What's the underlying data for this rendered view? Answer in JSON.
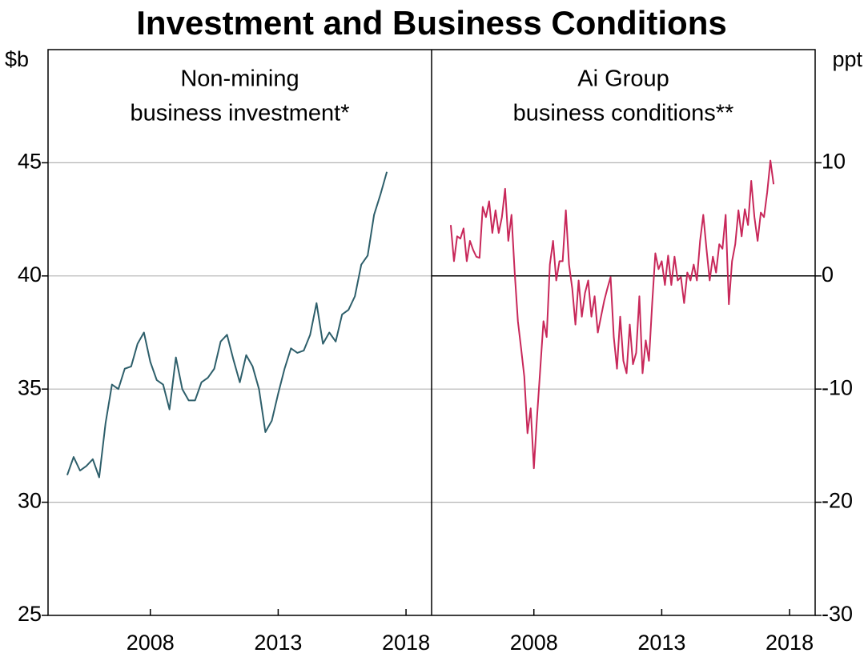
{
  "title": "Investment and Business Conditions",
  "chart_data": [
    {
      "type": "line",
      "title": [
        "Non-mining",
        "business investment*"
      ],
      "y_label": "$b",
      "color": "#2e5f6b",
      "x": [
        2004.75,
        2005,
        2005.25,
        2005.5,
        2005.75,
        2006,
        2006.25,
        2006.5,
        2006.75,
        2007,
        2007.25,
        2007.5,
        2007.75,
        2008,
        2008.25,
        2008.5,
        2008.75,
        2009,
        2009.25,
        2009.5,
        2009.75,
        2010,
        2010.25,
        2010.5,
        2010.75,
        2011,
        2011.25,
        2011.5,
        2011.75,
        2012,
        2012.25,
        2012.5,
        2012.75,
        2013,
        2013.25,
        2013.5,
        2013.75,
        2014,
        2014.25,
        2014.5,
        2014.75,
        2015,
        2015.25,
        2015.5,
        2015.75,
        2016,
        2016.25,
        2016.5,
        2016.75,
        2017,
        2017.25
      ],
      "values": [
        31.2,
        32.0,
        31.4,
        31.6,
        31.9,
        31.1,
        33.5,
        35.2,
        35.0,
        35.9,
        36.0,
        37.0,
        37.5,
        36.2,
        35.4,
        35.2,
        34.1,
        36.4,
        35.0,
        34.5,
        34.5,
        35.3,
        35.5,
        35.9,
        37.1,
        37.4,
        36.3,
        35.3,
        36.5,
        36.0,
        35.0,
        33.1,
        33.6,
        34.8,
        35.9,
        36.8,
        36.6,
        36.7,
        37.4,
        38.8,
        37.0,
        37.5,
        37.1,
        38.3,
        38.5,
        39.1,
        40.5,
        40.9,
        42.7,
        43.6,
        44.6
      ],
      "xlim": [
        2004,
        2019
      ],
      "xticks": [
        2008,
        2013,
        2018
      ],
      "ylim": [
        25,
        50
      ],
      "yticks": [
        25,
        30,
        35,
        40,
        45
      ],
      "grid": true
    },
    {
      "type": "line",
      "title": [
        "Ai Group",
        "business conditions**"
      ],
      "y_label": "ppt",
      "color": "#c8285a",
      "x": [
        2004.75,
        2004.875,
        2005,
        2005.125,
        2005.25,
        2005.375,
        2005.5,
        2005.625,
        2005.75,
        2005.875,
        2006,
        2006.125,
        2006.25,
        2006.375,
        2006.5,
        2006.625,
        2006.75,
        2006.875,
        2007,
        2007.125,
        2007.25,
        2007.375,
        2007.5,
        2007.625,
        2007.75,
        2007.875,
        2008,
        2008.125,
        2008.25,
        2008.375,
        2008.5,
        2008.625,
        2008.75,
        2008.875,
        2009,
        2009.125,
        2009.25,
        2009.375,
        2009.5,
        2009.625,
        2009.75,
        2009.875,
        2010,
        2010.125,
        2010.25,
        2010.375,
        2010.5,
        2010.625,
        2010.75,
        2010.875,
        2011,
        2011.125,
        2011.25,
        2011.375,
        2011.5,
        2011.625,
        2011.75,
        2011.875,
        2012,
        2012.125,
        2012.25,
        2012.375,
        2012.5,
        2012.625,
        2012.75,
        2012.875,
        2013,
        2013.125,
        2013.25,
        2013.375,
        2013.5,
        2013.625,
        2013.75,
        2013.875,
        2014,
        2014.125,
        2014.25,
        2014.375,
        2014.5,
        2014.625,
        2014.75,
        2014.875,
        2015,
        2015.125,
        2015.25,
        2015.375,
        2015.5,
        2015.625,
        2015.75,
        2015.875,
        2016,
        2016.125,
        2016.25,
        2016.375,
        2016.5,
        2016.625,
        2016.75,
        2016.875,
        2017,
        2017.125,
        2017.25,
        2017.375
      ],
      "values": [
        4.5,
        1.3,
        3.5,
        3.3,
        4.2,
        1.3,
        3.1,
        2.3,
        1.7,
        1.6,
        6.1,
        5.2,
        6.6,
        3.8,
        5.8,
        3.8,
        5.2,
        7.7,
        3.1,
        5.4,
        0.3,
        -4.0,
        -6.4,
        -8.9,
        -13.9,
        -11.7,
        -17.0,
        -12.4,
        -8.2,
        -4.0,
        -5.4,
        1.0,
        3.1,
        -0.4,
        1.3,
        1.3,
        5.8,
        1.0,
        -1.1,
        -4.3,
        -0.4,
        -3.6,
        -1.5,
        -0.4,
        -3.6,
        -1.8,
        -5.0,
        -3.6,
        -2.2,
        -1.1,
        -0.1,
        -5.4,
        -8.2,
        -3.6,
        -7.5,
        -8.6,
        -4.3,
        -7.8,
        -6.8,
        -1.8,
        -8.6,
        -5.7,
        -7.5,
        -2.5,
        2.0,
        0.6,
        1.3,
        -0.8,
        1.8,
        -0.8,
        1.7,
        -0.4,
        -0.1,
        -2.4,
        0.3,
        -0.4,
        1.0,
        -0.4,
        3.1,
        5.4,
        2.4,
        -0.4,
        1.7,
        0.3,
        2.8,
        2.4,
        5.4,
        -2.5,
        1.3,
        2.8,
        5.8,
        3.5,
        5.9,
        4.5,
        8.4,
        5.2,
        3.1,
        5.6,
        5.2,
        7.4,
        10.2,
        8.1
      ],
      "xlim": [
        2004,
        2019
      ],
      "xticks": [
        2008,
        2013,
        2018
      ],
      "ylim": [
        -30,
        20
      ],
      "yticks": [
        -30,
        -20,
        -10,
        0,
        10
      ],
      "grid": true
    }
  ]
}
